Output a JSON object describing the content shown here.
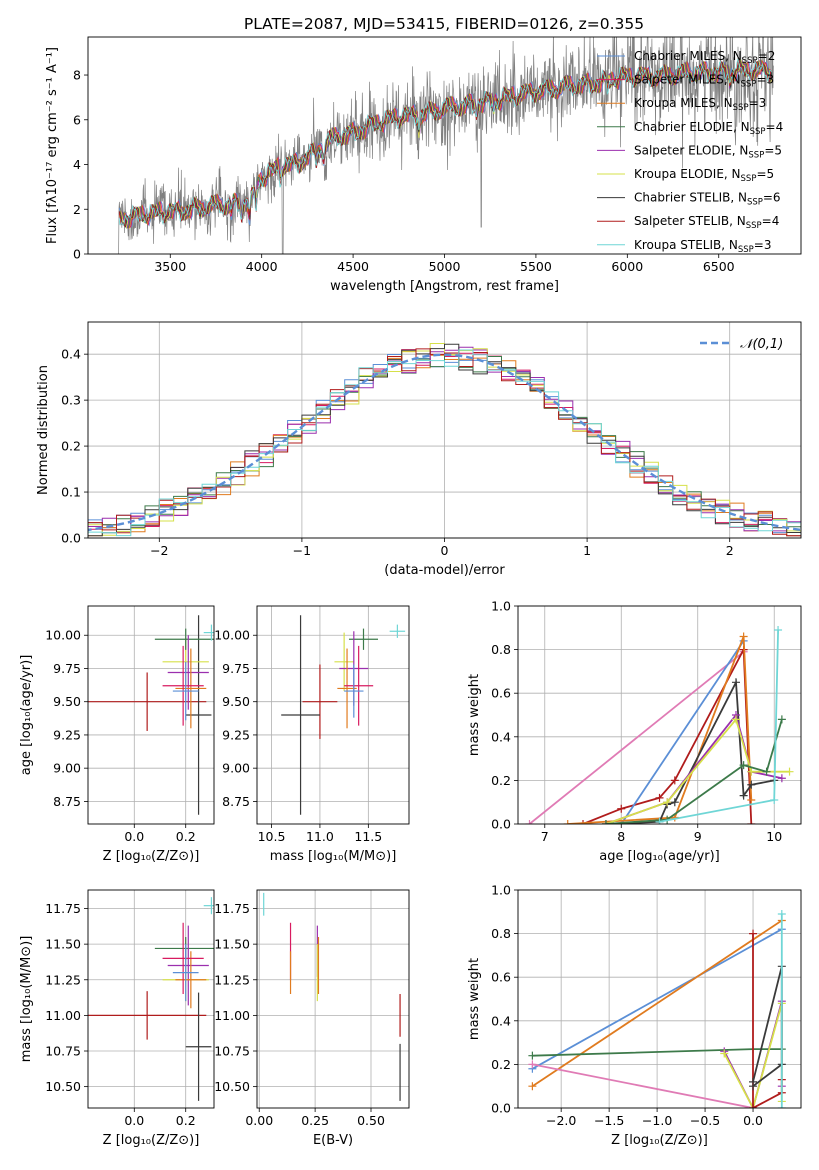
{
  "figure_title": "PLATE=2087, MJD=53415, FIBERID=0126, z=0.355",
  "colors": {
    "Chabrier MILES": "#5b8fd6",
    "Salpeter MILES": "#d81b60",
    "Kroupa MILES": "#e07b1f",
    "Chabrier ELODIE": "#3d7a4a",
    "Salpeter ELODIE": "#9b2fae",
    "Kroupa ELODIE": "#d6e04a",
    "Chabrier STELIB": "#3a3a3a",
    "Salpeter STELIB": "#b01c1c",
    "Kroupa STELIB": "#6fd6d6",
    "data": "#808080",
    "gauss": "#5b8fd6",
    "pink": "#e07bb5"
  },
  "chart_data": [
    {
      "id": "spectrum",
      "type": "line",
      "xlabel": "wavelength [Angstrom, rest frame]",
      "ylabel": "Flux [fλ10⁻¹⁷ erg cm⁻² s⁻¹ A⁻¹]",
      "xlim": [
        3050,
        6950
      ],
      "ylim": [
        0,
        9.7
      ],
      "xticks": [
        3500,
        4000,
        4500,
        5000,
        5500,
        6000,
        6500
      ],
      "yticks": [
        0,
        2,
        4,
        6,
        8
      ],
      "legend": "right",
      "series": [
        {
          "name": "Chabrier MILES, N_SSP=2"
        },
        {
          "name": "Salpeter MILES, N_SSP=3"
        },
        {
          "name": "Kroupa MILES, N_SSP=3"
        },
        {
          "name": "Chabrier ELODIE, N_SSP=4"
        },
        {
          "name": "Salpeter ELODIE, N_SSP=5"
        },
        {
          "name": "Kroupa ELODIE, N_SSP=5"
        },
        {
          "name": "Chabrier STELIB, N_SSP=6"
        },
        {
          "name": "Salpeter STELIB, N_SSP=4"
        },
        {
          "name": "Kroupa STELIB, N_SSP=3"
        }
      ],
      "model_knots": {
        "x": [
          3210,
          3300,
          3400,
          3500,
          3600,
          3700,
          3800,
          3900,
          3950,
          4000,
          4100,
          4200,
          4300,
          4400,
          4500,
          4600,
          4700,
          4800,
          4900,
          5000,
          5100,
          5200,
          5300,
          5400,
          5500,
          5600,
          5700,
          5800,
          5900,
          6000,
          6200,
          6400,
          6600,
          6790
        ],
        "y": [
          1.6,
          1.7,
          1.8,
          1.9,
          2.0,
          2.1,
          2.2,
          2.3,
          2.6,
          3.4,
          3.9,
          4.1,
          4.6,
          5.2,
          5.4,
          5.8,
          6.0,
          6.2,
          6.3,
          6.5,
          6.6,
          6.8,
          6.9,
          7.1,
          7.3,
          7.4,
          7.5,
          7.6,
          7.8,
          7.9,
          8.0,
          8.1,
          8.2,
          8.2
        ]
      }
    },
    {
      "id": "residual-histogram",
      "type": "line",
      "xlabel": "(data-model)/error",
      "ylabel": "Normed distribution",
      "xlim": [
        -2.5,
        2.5
      ],
      "ylim": [
        0,
        0.47
      ],
      "xticks": [
        -2,
        -1,
        0,
        1,
        2
      ],
      "yticks": [
        0.0,
        0.1,
        0.2,
        0.3,
        0.4
      ],
      "legend": "top-right",
      "gauss_label": "𝒩(0,1)",
      "bin_width": 0.1
    },
    {
      "id": "age-vs-Z",
      "type": "scatter",
      "xlabel": "Z [log₁₀(Z/Z⊙)]",
      "ylabel": "age  [log₁₀(age/yr)]",
      "xlim": [
        -0.18,
        0.31
      ],
      "ylim": [
        8.58,
        10.22
      ],
      "xticks": [
        0.0,
        0.2
      ],
      "yticks": [
        8.75,
        9.0,
        9.25,
        9.5,
        9.75,
        10.0
      ],
      "points": [
        {
          "model": "Salpeter STELIB",
          "x": 0.05,
          "xerr": 0.23,
          "y": 9.5,
          "yerr": 0.22
        },
        {
          "model": "Chabrier STELIB",
          "x": 0.25,
          "xerr": 0.05,
          "y": 9.4,
          "yerr": 0.75
        },
        {
          "model": "Kroupa ELODIE",
          "x": 0.2,
          "xerr": 0.09,
          "y": 9.8,
          "yerr": 0.18
        },
        {
          "model": "Chabrier ELODIE",
          "x": 0.2,
          "xerr": 0.12,
          "y": 9.97,
          "yerr": 0.08
        },
        {
          "model": "Salpeter ELODIE",
          "x": 0.21,
          "xerr": 0.08,
          "y": 9.72,
          "yerr": 0.28
        },
        {
          "model": "Kroupa MILES",
          "x": 0.22,
          "xerr": 0.06,
          "y": 9.6,
          "yerr": 0.3
        },
        {
          "model": "Salpeter MILES",
          "x": 0.19,
          "xerr": 0.08,
          "y": 9.62,
          "yerr": 0.3
        },
        {
          "model": "Chabrier MILES",
          "x": 0.2,
          "xerr": 0.05,
          "y": 9.58,
          "yerr": 0.22
        },
        {
          "model": "Kroupa STELIB",
          "x": 0.3,
          "xerr": 0.03,
          "y": 10.02,
          "yerr": 0.06
        }
      ]
    },
    {
      "id": "age-vs-mass",
      "type": "scatter",
      "xlabel": "mass [log₁₀(M/M⊙)]",
      "ylabel": "",
      "xlim": [
        10.35,
        11.92
      ],
      "ylim": [
        8.58,
        10.22
      ],
      "xticks": [
        10.5,
        11.0,
        11.5
      ],
      "yticks": [
        8.75,
        9.0,
        9.25,
        9.5,
        9.75,
        10.0
      ],
      "points": [
        {
          "model": "Salpeter STELIB",
          "x": 11.0,
          "xerr": 0.18,
          "y": 9.5,
          "yerr": 0.28
        },
        {
          "model": "Chabrier STELIB",
          "x": 10.8,
          "xerr": 0.2,
          "y": 9.4,
          "yerr": 0.75
        },
        {
          "model": "Kroupa ELODIE",
          "x": 11.25,
          "xerr": 0.1,
          "y": 9.8,
          "yerr": 0.22
        },
        {
          "model": "Chabrier ELODIE",
          "x": 11.45,
          "xerr": 0.15,
          "y": 9.97,
          "yerr": 0.08
        },
        {
          "model": "Salpeter ELODIE",
          "x": 11.35,
          "xerr": 0.15,
          "y": 9.75,
          "yerr": 0.28
        },
        {
          "model": "Kroupa MILES",
          "x": 11.28,
          "xerr": 0.1,
          "y": 9.6,
          "yerr": 0.3
        },
        {
          "model": "Salpeter MILES",
          "x": 11.4,
          "xerr": 0.15,
          "y": 9.62,
          "yerr": 0.3
        },
        {
          "model": "Chabrier MILES",
          "x": 11.35,
          "xerr": 0.1,
          "y": 9.58,
          "yerr": 0.2
        },
        {
          "model": "Kroupa STELIB",
          "x": 11.8,
          "xerr": 0.08,
          "y": 10.03,
          "yerr": 0.05
        }
      ]
    },
    {
      "id": "mass-weight-vs-age",
      "type": "line",
      "xlabel": "age  [log₁₀(age/yr)]",
      "ylabel": "mass weight",
      "xlim": [
        6.65,
        10.35
      ],
      "ylim": [
        0,
        1.0
      ],
      "xticks": [
        7,
        8,
        9,
        10
      ],
      "yticks": [
        0.0,
        0.2,
        0.4,
        0.6,
        0.8,
        1.0
      ],
      "series": [
        {
          "model": "Salpeter MILES",
          "x": [
            6.8,
            9.6
          ],
          "y": [
            0.0,
            0.79
          ]
        },
        {
          "model": "Salpeter STELIB",
          "x": [
            7.5,
            8.0,
            8.5,
            8.7,
            9.6,
            9.7
          ],
          "y": [
            0.0,
            0.07,
            0.12,
            0.2,
            0.8,
            0.0
          ]
        },
        {
          "model": "Chabrier MILES",
          "x": [
            8.0,
            9.6
          ],
          "y": [
            0.0,
            0.84
          ]
        },
        {
          "model": "Kroupa MILES",
          "x": [
            7.3,
            8.7,
            9.6,
            9.7
          ],
          "y": [
            0.0,
            0.03,
            0.86,
            0.11
          ]
        },
        {
          "model": "Chabrier STELIB",
          "x": [
            7.8,
            8.5,
            8.6,
            8.7,
            9.5,
            9.6,
            9.7,
            10.0
          ],
          "y": [
            0.0,
            0.01,
            0.09,
            0.1,
            0.65,
            0.13,
            0.18,
            0.2
          ]
        },
        {
          "model": "Salpeter ELODIE",
          "x": [
            7.8,
            8.6,
            9.5,
            9.7,
            10.1
          ],
          "y": [
            0.0,
            0.1,
            0.5,
            0.24,
            0.21
          ]
        },
        {
          "model": "Kroupa ELODIE",
          "x": [
            7.8,
            8.6,
            9.5,
            9.7,
            10.2
          ],
          "y": [
            0.0,
            0.1,
            0.48,
            0.24,
            0.24
          ]
        },
        {
          "model": "Chabrier ELODIE",
          "x": [
            7.8,
            8.6,
            9.6,
            9.9,
            10.1
          ],
          "y": [
            0.0,
            0.02,
            0.27,
            0.24,
            0.48
          ]
        },
        {
          "model": "Kroupa STELIB",
          "x": [
            8.5,
            10.0,
            10.05
          ],
          "y": [
            0.01,
            0.11,
            0.89
          ]
        }
      ]
    },
    {
      "id": "mass-vs-Z",
      "type": "scatter",
      "xlabel": "Z [log₁₀(Z/Z⊙)]",
      "ylabel": "mass [log₁₀(M/M⊙)]",
      "xlim": [
        -0.18,
        0.31
      ],
      "ylim": [
        10.35,
        11.88
      ],
      "xticks": [
        0.0,
        0.2
      ],
      "yticks": [
        10.5,
        10.75,
        11.0,
        11.25,
        11.5,
        11.75
      ],
      "points": [
        {
          "model": "Salpeter STELIB",
          "x": 0.05,
          "xerr": 0.23,
          "y": 11.0,
          "yerr": 0.17
        },
        {
          "model": "Chabrier STELIB",
          "x": 0.25,
          "xerr": 0.05,
          "y": 10.78,
          "yerr": 0.38
        },
        {
          "model": "Kroupa ELODIE",
          "x": 0.2,
          "xerr": 0.09,
          "y": 11.25,
          "yerr": 0.15
        },
        {
          "model": "Chabrier ELODIE",
          "x": 0.2,
          "xerr": 0.12,
          "y": 11.47,
          "yerr": 0.08
        },
        {
          "model": "Salpeter ELODIE",
          "x": 0.21,
          "xerr": 0.08,
          "y": 11.35,
          "yerr": 0.28
        },
        {
          "model": "Kroupa MILES",
          "x": 0.22,
          "xerr": 0.06,
          "y": 11.25,
          "yerr": 0.2
        },
        {
          "model": "Salpeter MILES",
          "x": 0.19,
          "xerr": 0.08,
          "y": 11.4,
          "yerr": 0.25
        },
        {
          "model": "Chabrier MILES",
          "x": 0.2,
          "xerr": 0.05,
          "y": 11.3,
          "yerr": 0.2
        },
        {
          "model": "Kroupa STELIB",
          "x": 0.3,
          "xerr": 0.03,
          "y": 11.77,
          "yerr": 0.06
        }
      ]
    },
    {
      "id": "mass-vs-EBV",
      "type": "scatter",
      "xlabel": "E(B-V)",
      "ylabel": "",
      "xlim": [
        -0.01,
        0.67
      ],
      "ylim": [
        10.35,
        11.88
      ],
      "xticks": [
        0.0,
        0.25,
        0.5
      ],
      "yticks": [
        10.5,
        10.75,
        11.0,
        11.25,
        11.5,
        11.75
      ],
      "points": [
        {
          "model": "Kroupa STELIB",
          "x": 0.02,
          "xerr": 0,
          "y": 11.78,
          "yerr": 0.08
        },
        {
          "model": "Salpeter MILES",
          "x": 0.14,
          "xerr": 0,
          "y": 11.45,
          "yerr": 0.2
        },
        {
          "model": "Kroupa MILES",
          "x": 0.14,
          "xerr": 0,
          "y": 11.3,
          "yerr": 0.15
        },
        {
          "model": "Salpeter ELODIE",
          "x": 0.26,
          "xerr": 0,
          "y": 11.45,
          "yerr": 0.18
        },
        {
          "model": "Kroupa ELODIE",
          "x": 0.26,
          "xerr": 0,
          "y": 11.3,
          "yerr": 0.2
        },
        {
          "model": "Kroupa MILES",
          "x": 0.265,
          "xerr": 0,
          "y": 11.35,
          "yerr": 0.2
        },
        {
          "model": "Salpeter STELIB",
          "x": 0.63,
          "xerr": 0,
          "y": 11.0,
          "yerr": 0.15
        },
        {
          "model": "Chabrier STELIB",
          "x": 0.63,
          "xerr": 0,
          "y": 10.6,
          "yerr": 0.2
        }
      ]
    },
    {
      "id": "mass-weight-vs-Z",
      "type": "line",
      "xlabel": "Z [log₁₀(Z/Z⊙)]",
      "ylabel": "mass weight",
      "xlim": [
        -2.45,
        0.5
      ],
      "ylim": [
        0,
        1.0
      ],
      "xticks": [
        -2.0,
        -1.5,
        -1.0,
        -0.5,
        0.0
      ],
      "yticks": [
        0.0,
        0.2,
        0.4,
        0.6,
        0.8,
        1.0
      ],
      "series": [
        {
          "model": "Chabrier MILES",
          "x": [
            -2.3,
            0.3
          ],
          "y": [
            0.18,
            0.82
          ]
        },
        {
          "model": "Kroupa MILES",
          "x": [
            -2.3,
            0.3
          ],
          "y": [
            0.1,
            0.86
          ]
        },
        {
          "model": "Chabrier ELODIE",
          "x": [
            -2.3,
            0.0,
            0.3
          ],
          "y": [
            0.24,
            0.27,
            0.27
          ]
        },
        {
          "model": "Salpeter MILES",
          "x": [
            -2.3,
            0.0
          ],
          "y": [
            0.2,
            0.0
          ]
        },
        {
          "model": "Salpeter ELODIE",
          "x": [
            -0.3,
            0.0,
            0.3,
            0.3
          ],
          "y": [
            0.26,
            0.0,
            0.49,
            0.1
          ]
        },
        {
          "model": "Kroupa ELODIE",
          "x": [
            -0.3,
            0.0,
            0.3,
            0.3
          ],
          "y": [
            0.25,
            0.0,
            0.48,
            0.03
          ]
        },
        {
          "model": "Salpeter STELIB",
          "x": [
            0.0,
            0.0,
            0.3,
            0.3
          ],
          "y": [
            0.8,
            0.0,
            0.07,
            0.13
          ]
        },
        {
          "model": "Chabrier STELIB",
          "x": [
            0.0,
            0.3,
            0.3,
            0.0
          ],
          "y": [
            0.12,
            0.65,
            0.2,
            0.1
          ]
        },
        {
          "model": "Kroupa STELIB",
          "x": [
            0.3,
            0.3
          ],
          "y": [
            0.0,
            0.89
          ]
        }
      ]
    }
  ]
}
